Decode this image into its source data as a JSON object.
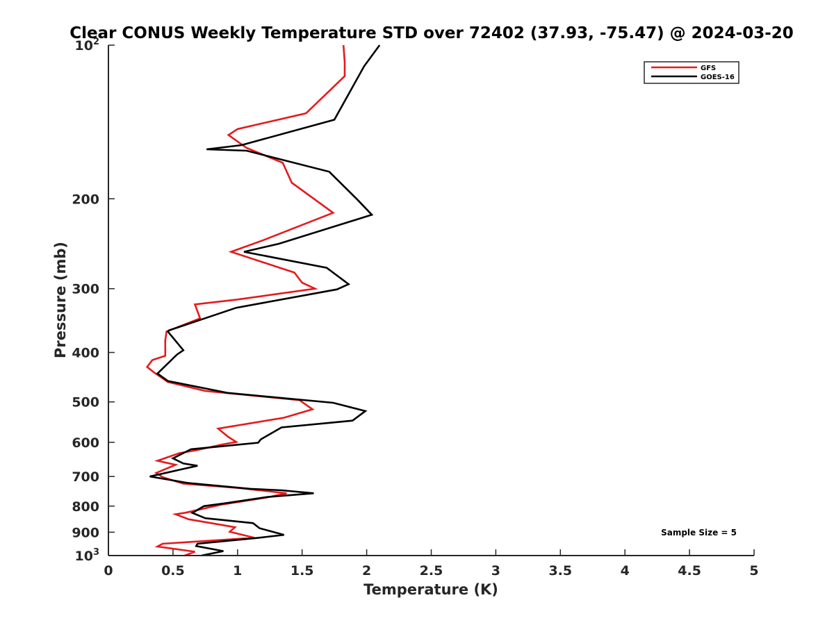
{
  "chart_data": {
    "type": "line",
    "title": "Clear CONUS Weekly Temperature STD over 72402 (37.93, -75.47) @ 2024-03-20",
    "xlabel": "Temperature (K)",
    "ylabel": "Pressure (mb)",
    "xlim": [
      0,
      5
    ],
    "ylim": [
      100,
      1000
    ],
    "y_scale": "log",
    "y_reversed": true,
    "grid": false,
    "x_ticks": [
      "0",
      "0.5",
      "1",
      "1.5",
      "2",
      "2.5",
      "3",
      "3.5",
      "4",
      "4.5",
      "5"
    ],
    "y_ticks": [
      {
        "value": 100,
        "base": "10",
        "exp": "2"
      },
      {
        "value": 200,
        "label": "200"
      },
      {
        "value": 300,
        "label": "300"
      },
      {
        "value": 400,
        "label": "400"
      },
      {
        "value": 500,
        "label": "500"
      },
      {
        "value": 600,
        "label": "600"
      },
      {
        "value": 700,
        "label": "700"
      },
      {
        "value": 800,
        "label": "800"
      },
      {
        "value": 900,
        "label": "900"
      },
      {
        "value": 1000,
        "base": "10",
        "exp": "3"
      }
    ],
    "legend_position": "top-right",
    "annotation": "Sample Size = 5",
    "series": [
      {
        "name": "GFS",
        "color": "#e41a1c",
        "points": [
          [
            1.82,
            100
          ],
          [
            1.83,
            108
          ],
          [
            1.83,
            115
          ],
          [
            1.53,
            136
          ],
          [
            1.0,
            146
          ],
          [
            0.93,
            150
          ],
          [
            1.07,
            159
          ],
          [
            1.35,
            170
          ],
          [
            1.42,
            186
          ],
          [
            1.74,
            213
          ],
          [
            1.2,
            241
          ],
          [
            0.95,
            254
          ],
          [
            1.44,
            279
          ],
          [
            1.5,
            292
          ],
          [
            1.6,
            300
          ],
          [
            1.0,
            315
          ],
          [
            0.67,
            322
          ],
          [
            0.71,
            343
          ],
          [
            0.45,
            364
          ],
          [
            0.44,
            379
          ],
          [
            0.44,
            406
          ],
          [
            0.34,
            414
          ],
          [
            0.3,
            427
          ],
          [
            0.35,
            437
          ],
          [
            0.46,
            457
          ],
          [
            0.75,
            476
          ],
          [
            1.48,
            496
          ],
          [
            1.58,
            517
          ],
          [
            1.36,
            537
          ],
          [
            0.85,
            564
          ],
          [
            0.93,
            586
          ],
          [
            0.99,
            599
          ],
          [
            0.88,
            606
          ],
          [
            0.68,
            622
          ],
          [
            0.55,
            630
          ],
          [
            0.38,
            652
          ],
          [
            0.52,
            664
          ],
          [
            0.37,
            689
          ],
          [
            0.42,
            702
          ],
          [
            0.58,
            723
          ],
          [
            1.0,
            737
          ],
          [
            1.38,
            755
          ],
          [
            1.22,
            770
          ],
          [
            0.87,
            795
          ],
          [
            0.6,
            824
          ],
          [
            0.52,
            830
          ],
          [
            0.62,
            849
          ],
          [
            0.98,
            880
          ],
          [
            0.94,
            898
          ],
          [
            1.13,
            923
          ],
          [
            0.42,
            948
          ],
          [
            0.38,
            960
          ],
          [
            0.67,
            983
          ],
          [
            0.59,
            1000
          ]
        ]
      },
      {
        "name": "GOES-16",
        "color": "#000000",
        "points": [
          [
            2.1,
            100
          ],
          [
            1.98,
            110
          ],
          [
            1.75,
            140
          ],
          [
            1.03,
            157
          ],
          [
            0.76,
            160
          ],
          [
            1.07,
            161
          ],
          [
            1.71,
            177
          ],
          [
            1.93,
            201
          ],
          [
            2.04,
            215
          ],
          [
            1.32,
            245
          ],
          [
            1.05,
            254
          ],
          [
            1.69,
            273
          ],
          [
            1.86,
            294
          ],
          [
            1.77,
            301
          ],
          [
            0.99,
            327
          ],
          [
            0.82,
            338
          ],
          [
            0.47,
            362
          ],
          [
            0.46,
            364
          ],
          [
            0.58,
            396
          ],
          [
            0.53,
            404
          ],
          [
            0.38,
            440
          ],
          [
            0.46,
            455
          ],
          [
            0.92,
            480
          ],
          [
            1.74,
            502
          ],
          [
            1.99,
            521
          ],
          [
            1.89,
            544
          ],
          [
            1.34,
            561
          ],
          [
            1.18,
            592
          ],
          [
            1.16,
            601
          ],
          [
            0.64,
            619
          ],
          [
            0.5,
            645
          ],
          [
            0.58,
            660
          ],
          [
            0.69,
            667
          ],
          [
            0.32,
            700
          ],
          [
            0.62,
            721
          ],
          [
            1.1,
            740
          ],
          [
            1.34,
            745
          ],
          [
            1.59,
            755
          ],
          [
            1.23,
            768
          ],
          [
            0.9,
            790
          ],
          [
            0.74,
            800
          ],
          [
            0.65,
            825
          ],
          [
            0.75,
            845
          ],
          [
            1.12,
            864
          ],
          [
            1.17,
            884
          ],
          [
            1.36,
            911
          ],
          [
            1.13,
            925
          ],
          [
            0.69,
            948
          ],
          [
            0.68,
            958
          ],
          [
            0.89,
            980
          ],
          [
            0.72,
            1000
          ]
        ]
      }
    ]
  }
}
